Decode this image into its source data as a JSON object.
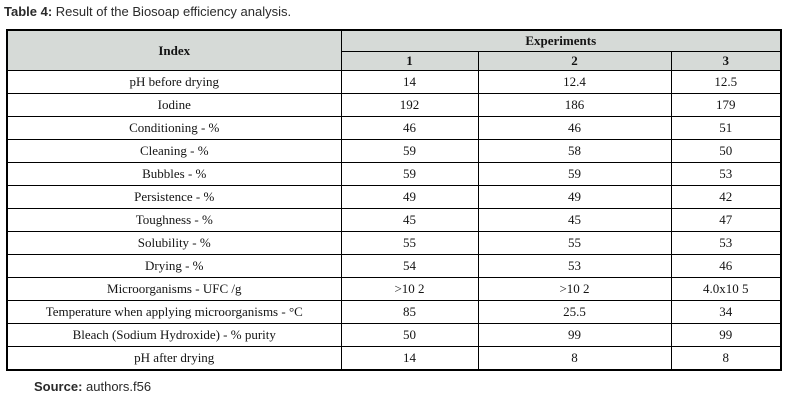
{
  "caption": {
    "label": "Table 4:",
    "text": " Result of the Biosoap efficiency analysis."
  },
  "table": {
    "index_header": "Index",
    "experiments_header": "Experiments",
    "experiment_columns": [
      "1",
      "2",
      "3"
    ],
    "rows": [
      {
        "index": "pH before drying",
        "values": [
          "14",
          "12.4",
          "12.5"
        ]
      },
      {
        "index": "Iodine",
        "values": [
          "192",
          "186",
          "179"
        ]
      },
      {
        "index": "Conditioning - %",
        "values": [
          "46",
          "46",
          "51"
        ]
      },
      {
        "index": "Cleaning - %",
        "values": [
          "59",
          "58",
          "50"
        ]
      },
      {
        "index": "Bubbles - %",
        "values": [
          "59",
          "59",
          "53"
        ]
      },
      {
        "index": "Persistence - %",
        "values": [
          "49",
          "49",
          "42"
        ]
      },
      {
        "index": "Toughness - %",
        "values": [
          "45",
          "45",
          "47"
        ]
      },
      {
        "index": "Solubility - %",
        "values": [
          "55",
          "55",
          "53"
        ]
      },
      {
        "index": "Drying - %",
        "values": [
          "54",
          "53",
          "46"
        ]
      },
      {
        "index": "Microorganisms - UFC /g",
        "values": [
          ">10 2",
          ">10 2",
          "4.0x10 5"
        ]
      },
      {
        "index": "Temperature when applying microorganisms - °C",
        "values": [
          "85",
          "25.5",
          "34"
        ]
      },
      {
        "index": "Bleach (Sodium Hydroxide) - % purity",
        "values": [
          "50",
          "99",
          "99"
        ]
      },
      {
        "index": "pH after drying",
        "values": [
          "14",
          "8",
          "8"
        ]
      }
    ]
  },
  "source": {
    "label": "Source:",
    "text": " authors.f56"
  },
  "colors": {
    "header_bg": "#d6dad7",
    "border": "#000000",
    "text": "#141414"
  },
  "chart_data": {
    "type": "table",
    "title": "Table 4: Result of the Biosoap efficiency analysis.",
    "column_group": "Experiments",
    "columns": [
      "Index",
      "1",
      "2",
      "3"
    ],
    "rows": [
      [
        "pH before drying",
        "14",
        "12.4",
        "12.5"
      ],
      [
        "Iodine",
        "192",
        "186",
        "179"
      ],
      [
        "Conditioning - %",
        "46",
        "46",
        "51"
      ],
      [
        "Cleaning - %",
        "59",
        "58",
        "50"
      ],
      [
        "Bubbles - %",
        "59",
        "59",
        "53"
      ],
      [
        "Persistence - %",
        "49",
        "49",
        "42"
      ],
      [
        "Toughness - %",
        "45",
        "45",
        "47"
      ],
      [
        "Solubility - %",
        "55",
        "55",
        "53"
      ],
      [
        "Drying - %",
        "54",
        "53",
        "46"
      ],
      [
        "Microorganisms - UFC /g",
        ">10 2",
        ">10 2",
        "4.0x10 5"
      ],
      [
        "Temperature when applying microorganisms - °C",
        "85",
        "25.5",
        "34"
      ],
      [
        "Bleach (Sodium Hydroxide) - % purity",
        "50",
        "99",
        "99"
      ],
      [
        "pH after drying",
        "14",
        "8",
        "8"
      ]
    ]
  }
}
